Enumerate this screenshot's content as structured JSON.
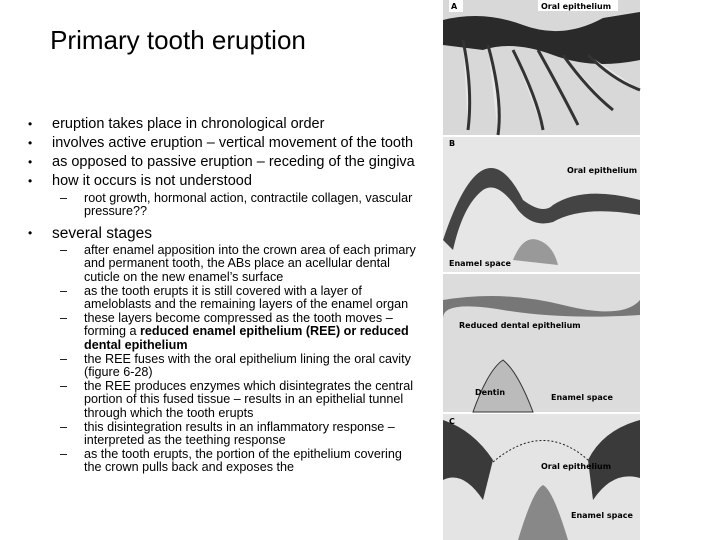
{
  "title": "Primary tooth eruption",
  "bullets": [
    {
      "text": "eruption takes place in chronological order"
    },
    {
      "text": "involves active eruption – vertical movement of the tooth"
    },
    {
      "text": "as opposed to passive eruption – receding of the gingiva"
    },
    {
      "text": "how it occurs is not understood",
      "subitems": [
        {
          "runs": [
            {
              "text": "root growth, hormonal action, contractile collagen, vascular pressure??"
            }
          ]
        }
      ]
    },
    {
      "text": "several stages",
      "subitems": [
        {
          "runs": [
            {
              "text": "after enamel apposition into the crown area of each primary and permanent tooth, the ABs place an acellular dental cuticle on the new enamel’s surface"
            }
          ]
        },
        {
          "runs": [
            {
              "text": "as the tooth erupts it is still covered with a layer of ameloblasts and the remaining layers of the enamel organ"
            }
          ]
        },
        {
          "runs": [
            {
              "text": "these layers become compressed as the tooth moves – forming a "
            },
            {
              "text": "reduced enamel epithelium (REE) or reduced dental epithelium",
              "bold": true
            }
          ]
        },
        {
          "runs": [
            {
              "text": "the REE fuses with the oral epithelium lining the oral cavity (figure 6-28)"
            }
          ]
        },
        {
          "runs": [
            {
              "text": "the REE produces enzymes which disintegrates the central portion of this fused tissue – results in an epithelial tunnel through which the tooth erupts"
            }
          ]
        },
        {
          "runs": [
            {
              "text": "this disintegration results in an inflammatory response – interpreted as the teething response"
            }
          ]
        },
        {
          "runs": [
            {
              "text": "as the tooth erupts, the portion of the epithelium covering the crown pulls back and exposes the"
            }
          ]
        }
      ]
    }
  ],
  "figure": {
    "panel_a": {
      "letter": "A",
      "label": "Oral epithelium"
    },
    "panel_b": {
      "letter": "B",
      "label": "Oral epithelium",
      "space": "Enamel space"
    },
    "panel_mid": {
      "label": "Reduced dental epithelium",
      "dentin": "Dentin",
      "space": "Enamel space"
    },
    "panel_c": {
      "letter": "C",
      "label": "Oral epithelium",
      "space": "Enamel space"
    }
  }
}
